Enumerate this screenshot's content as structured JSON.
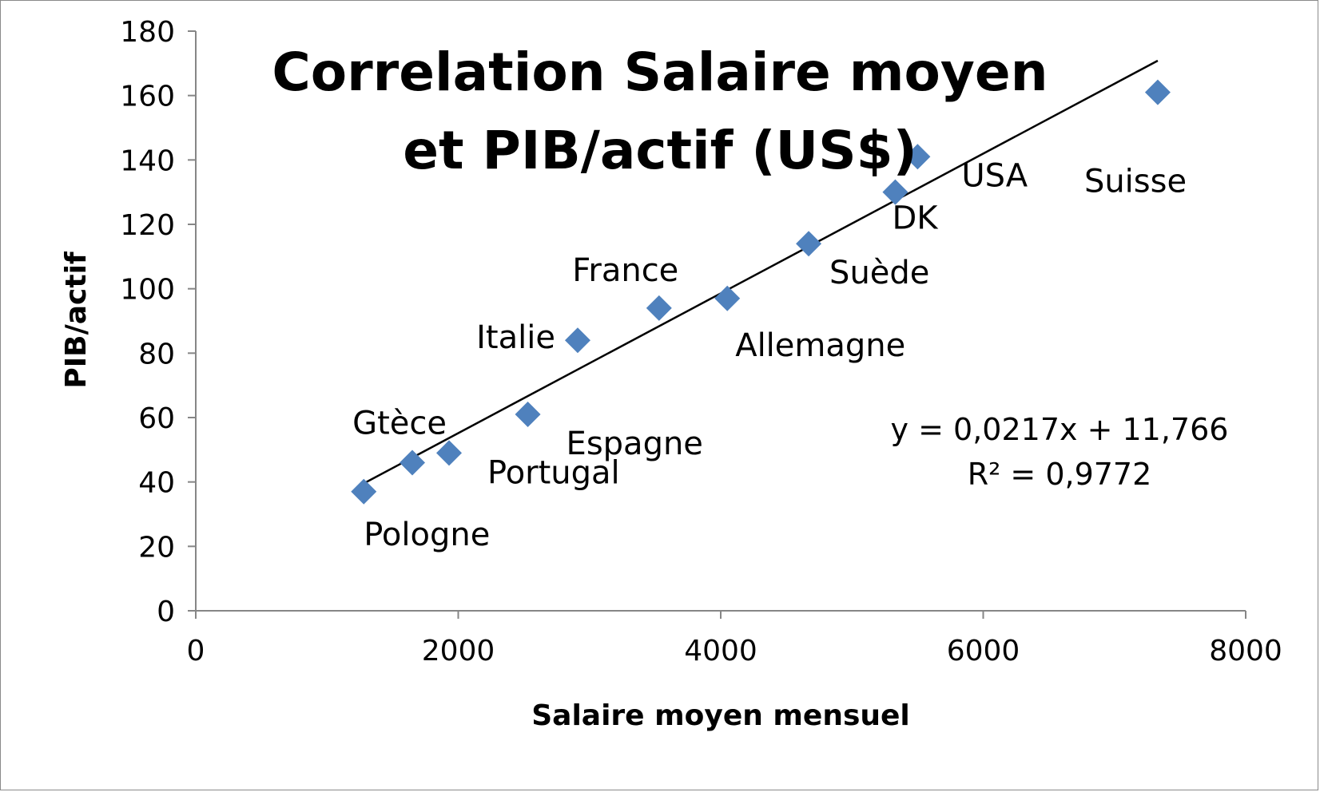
{
  "chart_data": {
    "type": "scatter",
    "title_lines": [
      "Correlation Salaire moyen",
      "et PIB/actif (US$)"
    ],
    "xlabel": "Salaire moyen mensuel",
    "ylabel": "PIB/actif",
    "xlim": [
      0,
      8000
    ],
    "ylim": [
      0,
      180
    ],
    "xticks": [
      0,
      2000,
      4000,
      6000,
      8000
    ],
    "yticks": [
      0,
      20,
      40,
      60,
      80,
      100,
      120,
      140,
      160,
      180
    ],
    "grid": false,
    "marker_color": "#4f81bd",
    "points": [
      {
        "label": "Pologne",
        "x": 1280,
        "y": 37
      },
      {
        "label": "Gtèce",
        "x": 1650,
        "y": 46
      },
      {
        "label": "Portugal",
        "x": 1930,
        "y": 49
      },
      {
        "label": "Espagne",
        "x": 2530,
        "y": 61
      },
      {
        "label": "Italie",
        "x": 2910,
        "y": 84
      },
      {
        "label": "France",
        "x": 3530,
        "y": 94
      },
      {
        "label": "Allemagne",
        "x": 4050,
        "y": 97
      },
      {
        "label": "Suède",
        "x": 4670,
        "y": 114
      },
      {
        "label": "DK",
        "x": 5330,
        "y": 130
      },
      {
        "label": "USA",
        "x": 5500,
        "y": 141
      },
      {
        "label": "Suisse",
        "x": 7330,
        "y": 161
      }
    ],
    "trendline": {
      "type": "linear",
      "slope": 0.0217,
      "intercept": 11.766,
      "x_range": [
        1280,
        7330
      ],
      "equation_text": "y = 0,0217x + 11,766",
      "r2_text": "R² = 0,9772"
    }
  }
}
